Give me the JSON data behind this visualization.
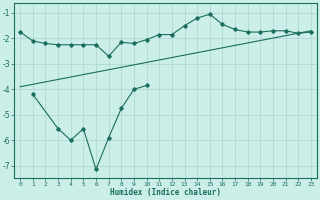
{
  "background_color": "#cceee8",
  "line_color": "#1a6e5e",
  "grid_color": "#aad4cc",
  "xlabel": "Humidex (Indice chaleur)",
  "xlim": [
    -0.5,
    23.5
  ],
  "ylim": [
    -7.5,
    -0.6
  ],
  "yticks": [
    -7,
    -6,
    -5,
    -4,
    -3,
    -2,
    -1
  ],
  "xticks": [
    0,
    1,
    2,
    3,
    4,
    5,
    6,
    7,
    8,
    9,
    10,
    11,
    12,
    13,
    14,
    15,
    16,
    17,
    18,
    19,
    20,
    21,
    22,
    23
  ],
  "line1_x": [
    0,
    1,
    2,
    3,
    4,
    5,
    6,
    7,
    8,
    9,
    10,
    11,
    12,
    13,
    14,
    15,
    16,
    17,
    18,
    19,
    20,
    21,
    22,
    23
  ],
  "line1_y": [
    -1.75,
    -2.1,
    -2.2,
    -2.25,
    -2.25,
    -2.25,
    -2.25,
    -2.7,
    -2.15,
    -2.2,
    -2.05,
    -1.85,
    -1.85,
    -1.5,
    -1.2,
    -1.05,
    -1.45,
    -1.65,
    -1.75,
    -1.75,
    -1.7,
    -1.7,
    -1.8,
    -1.75
  ],
  "line2_x": [
    0,
    23
  ],
  "line2_y": [
    -3.9,
    -1.7
  ],
  "line3_x": [
    3,
    4,
    5,
    5,
    6,
    6,
    7,
    8,
    9,
    10
  ],
  "line3_y": [
    -5.55,
    -6.0,
    -5.55,
    -5.6,
    -7.15,
    -6.0,
    -5.9,
    -4.75,
    -4.0,
    -3.85
  ],
  "line3_x_full": [
    1,
    3,
    4,
    5,
    6,
    7,
    8,
    9,
    10
  ],
  "line3_y_full": [
    -4.2,
    -5.55,
    -6.0,
    -5.55,
    -7.15,
    -5.9,
    -4.75,
    -4.0,
    -3.85
  ],
  "figsize": [
    3.2,
    2.0
  ],
  "dpi": 100
}
